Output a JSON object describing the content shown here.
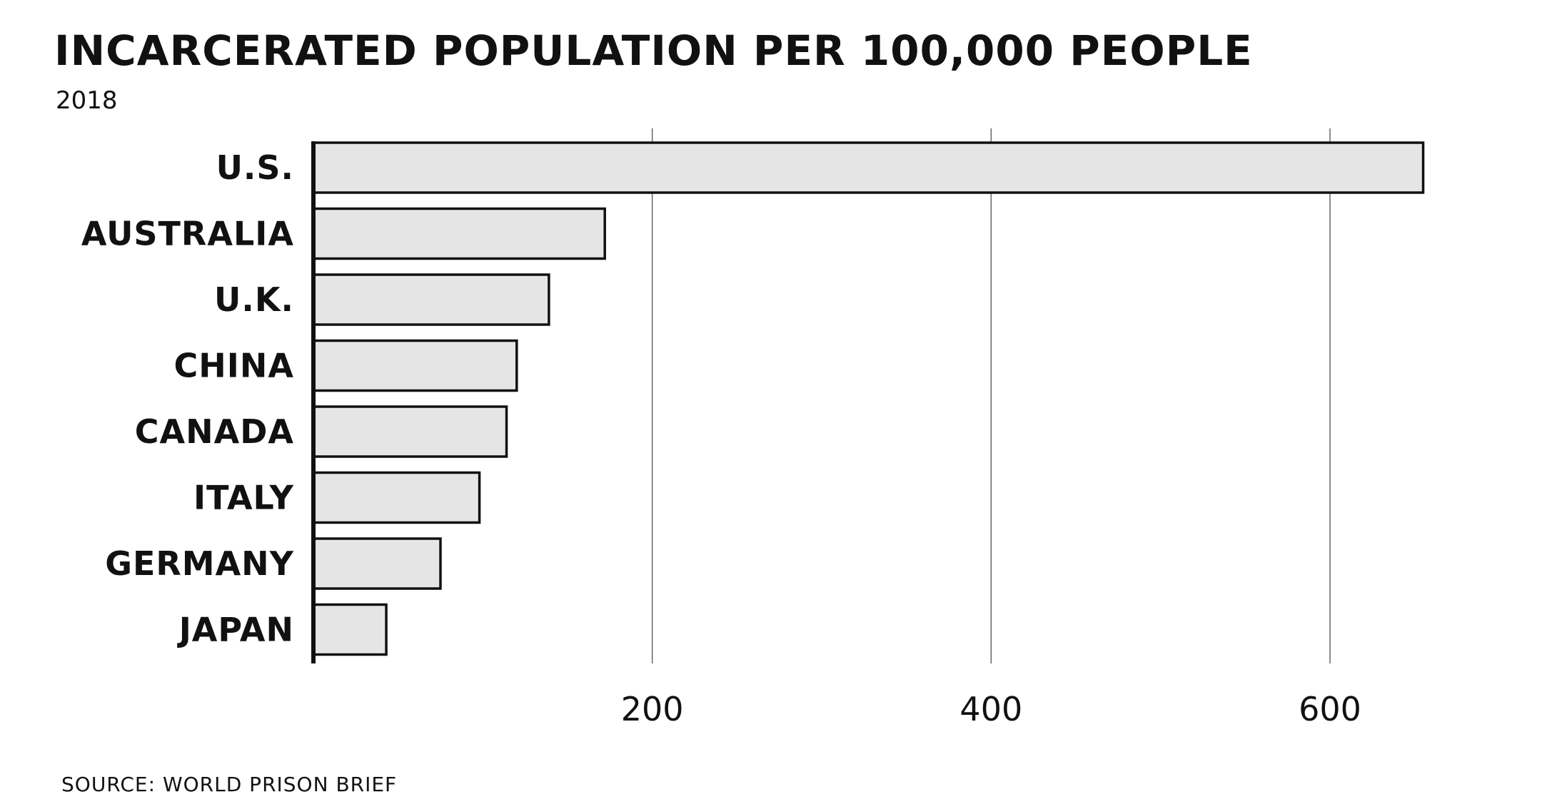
{
  "chart_data": {
    "type": "bar",
    "orientation": "horizontal",
    "title": "INCARCERATED POPULATION PER 100,000 PEOPLE",
    "subtitle": "2018",
    "source": "SOURCE: WORLD PRISON BRIEF",
    "categories": [
      "U.S.",
      "AUSTRALIA",
      "U.K.",
      "CHINA",
      "CANADA",
      "ITALY",
      "GERMANY",
      "JAPAN"
    ],
    "values": [
      655,
      172,
      139,
      120,
      114,
      98,
      75,
      43
    ],
    "xticks": [
      200,
      400,
      600
    ],
    "xlim": [
      0,
      680
    ],
    "grid": true,
    "bar_color": "#e5e5e5",
    "edge_color": "#111111"
  }
}
